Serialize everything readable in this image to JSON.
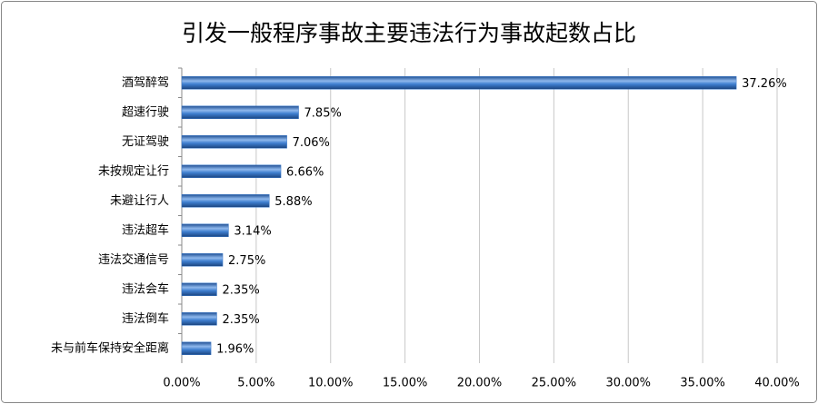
{
  "chart_data": {
    "type": "hbar",
    "title": "引发一般程序事故主要违法行为事故起数占比",
    "categories": [
      "酒驾醉驾",
      "超速行驶",
      "无证驾驶",
      "未按规定让行",
      "未避让行人",
      "违法超车",
      "违法交通信号",
      "违法会车",
      "违法倒车",
      "未与前车保持安全距离"
    ],
    "values": [
      37.26,
      7.85,
      7.06,
      6.66,
      5.88,
      3.14,
      2.75,
      2.35,
      2.35,
      1.96
    ],
    "value_labels": [
      "37.26%",
      "7.85%",
      "7.06%",
      "6.66%",
      "5.88%",
      "3.14%",
      "2.75%",
      "2.35%",
      "2.35%",
      "1.96%"
    ],
    "color": "#3a78c8",
    "xlim": [
      0,
      40
    ],
    "xticks": [
      {
        "value": 0,
        "label": "0.00%"
      },
      {
        "value": 5,
        "label": "5.00%"
      },
      {
        "value": 10,
        "label": "10.00%"
      },
      {
        "value": 15,
        "label": "15.00%"
      },
      {
        "value": 20,
        "label": "20.00%"
      },
      {
        "value": 25,
        "label": "25.00%"
      },
      {
        "value": 30,
        "label": "30.00%"
      },
      {
        "value": 35,
        "label": "35.00%"
      },
      {
        "value": 40,
        "label": "40.00%"
      }
    ],
    "grid": true
  }
}
